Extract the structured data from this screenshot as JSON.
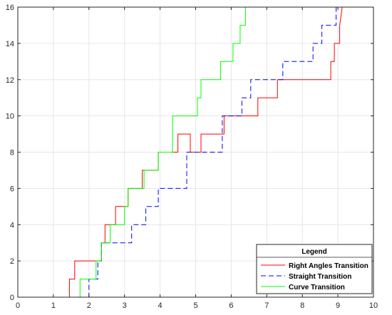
{
  "chart_data": {
    "type": "line",
    "title": "",
    "xlabel": "",
    "ylabel": "",
    "xlim": [
      0,
      10
    ],
    "ylim": [
      0,
      16
    ],
    "xticks": [
      0,
      1,
      2,
      3,
      4,
      5,
      6,
      7,
      8,
      9,
      10
    ],
    "yticks": [
      0,
      2,
      4,
      6,
      8,
      10,
      12,
      14,
      16
    ],
    "grid": true,
    "legend": {
      "title": "Legend",
      "placement": "bottom-right"
    },
    "series": [
      {
        "name": "Right Angles Transition",
        "color": "#ff0000",
        "dash": "solid",
        "x": [
          0,
          1.45,
          1.45,
          1.6,
          1.6,
          2.35,
          2.35,
          2.45,
          2.45,
          2.75,
          2.75,
          3.1,
          3.1,
          3.5,
          3.5,
          3.95,
          3.95,
          4.5,
          4.5,
          4.85,
          4.85,
          5.15,
          5.15,
          5.8,
          5.8,
          6.75,
          6.75,
          7.3,
          7.3,
          8.8,
          8.8,
          8.9,
          8.9,
          9.05,
          9.05,
          9.12
        ],
        "y": [
          0,
          0,
          1,
          1,
          2,
          2,
          3,
          3,
          4,
          4,
          5,
          5,
          6,
          6,
          7,
          7,
          8,
          8,
          9,
          9,
          8,
          8,
          9,
          9,
          10,
          10,
          11,
          11,
          12,
          12,
          13,
          13,
          14,
          14,
          15,
          16
        ]
      },
      {
        "name": "Straight Transition",
        "color": "#0000ff",
        "dash": "dashed",
        "x": [
          0,
          2.0,
          2.0,
          2.25,
          2.25,
          2.35,
          2.35,
          3.2,
          3.2,
          3.6,
          3.6,
          3.95,
          3.95,
          4.75,
          4.75,
          5.75,
          5.75,
          6.3,
          6.3,
          6.55,
          6.55,
          6.75,
          6.75,
          7.45,
          7.45,
          8.3,
          8.3,
          8.55,
          8.55,
          8.95,
          8.95,
          9.1
        ],
        "y": [
          0,
          0,
          1,
          1,
          2,
          2,
          3,
          3,
          4,
          4,
          5,
          5,
          6,
          6,
          8,
          8,
          10,
          10,
          11,
          11,
          12,
          12,
          12,
          12,
          13,
          13,
          14,
          14,
          15,
          15,
          16,
          16
        ]
      },
      {
        "name": "Curve Transition",
        "color": "#00ff00",
        "dash": "solid",
        "x": [
          0,
          1.75,
          1.75,
          2.2,
          2.2,
          2.35,
          2.35,
          2.6,
          2.6,
          3.0,
          3.0,
          3.1,
          3.1,
          3.55,
          3.55,
          3.8,
          3.8,
          3.95,
          3.95,
          4.35,
          4.35,
          5.05,
          5.05,
          5.15,
          5.15,
          5.7,
          5.7,
          6.05,
          6.05,
          6.25,
          6.25,
          6.4,
          6.4,
          9.1
        ],
        "y": [
          0,
          0,
          1,
          1,
          2,
          2,
          3,
          3,
          4,
          4,
          5,
          5,
          6,
          6,
          7,
          7,
          7,
          7,
          8,
          8,
          10,
          10,
          11,
          11,
          12,
          12,
          13,
          13,
          14,
          14,
          15,
          15,
          16,
          16
        ]
      }
    ]
  }
}
